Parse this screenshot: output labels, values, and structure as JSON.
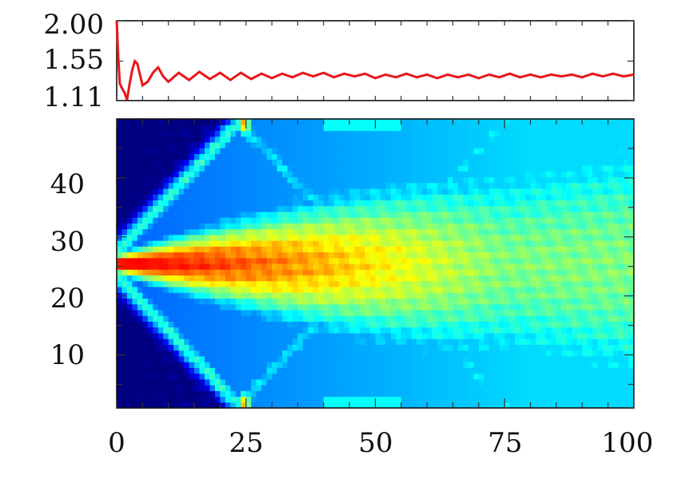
{
  "chart_data": [
    {
      "type": "line",
      "title": "",
      "xlabel": "",
      "ylabel": "",
      "xlim": [
        0,
        100
      ],
      "ylim": [
        1.11,
        2.0
      ],
      "yticks": [
        "2.00",
        "1.55",
        "1.11"
      ],
      "xticks": [],
      "grid": false,
      "legend": "none",
      "series": [
        {
          "color": "#e8161a",
          "x": [
            0,
            0.3,
            0.6,
            1,
            1.5,
            2,
            2.5,
            3,
            3.5,
            4,
            5,
            6,
            7,
            8,
            9,
            10,
            12,
            14,
            16,
            18,
            20,
            22,
            24,
            26,
            28,
            30,
            32,
            34,
            36,
            38,
            40,
            42,
            44,
            46,
            48,
            50,
            52,
            54,
            56,
            58,
            60,
            62,
            64,
            66,
            68,
            70,
            72,
            74,
            76,
            78,
            80,
            82,
            84,
            86,
            88,
            90,
            92,
            94,
            96,
            98,
            100
          ],
          "y": [
            2.0,
            1.6,
            1.3,
            1.25,
            1.2,
            1.12,
            1.3,
            1.45,
            1.55,
            1.52,
            1.28,
            1.32,
            1.42,
            1.48,
            1.38,
            1.32,
            1.42,
            1.34,
            1.43,
            1.35,
            1.42,
            1.34,
            1.42,
            1.35,
            1.41,
            1.36,
            1.41,
            1.37,
            1.42,
            1.38,
            1.42,
            1.37,
            1.41,
            1.38,
            1.41,
            1.36,
            1.4,
            1.37,
            1.41,
            1.37,
            1.4,
            1.36,
            1.4,
            1.37,
            1.4,
            1.36,
            1.4,
            1.37,
            1.41,
            1.37,
            1.4,
            1.37,
            1.4,
            1.38,
            1.4,
            1.37,
            1.41,
            1.38,
            1.41,
            1.38,
            1.4
          ]
        }
      ]
    },
    {
      "type": "heatmap",
      "title": "",
      "xlabel": "",
      "ylabel": "",
      "xlim": [
        0,
        100
      ],
      "ylim": [
        1,
        50
      ],
      "xticks": [
        "0",
        "25",
        "50",
        "75",
        "100"
      ],
      "yticks": [
        "10",
        "20",
        "30",
        "40"
      ],
      "grid": false,
      "legend": "none",
      "colormap": "jet",
      "colors": {
        "low": "#00007f",
        "mid_low": "#0080ff",
        "mid": "#80ff80",
        "mid_high": "#ffcc00",
        "high": "#ff0000"
      }
    }
  ]
}
